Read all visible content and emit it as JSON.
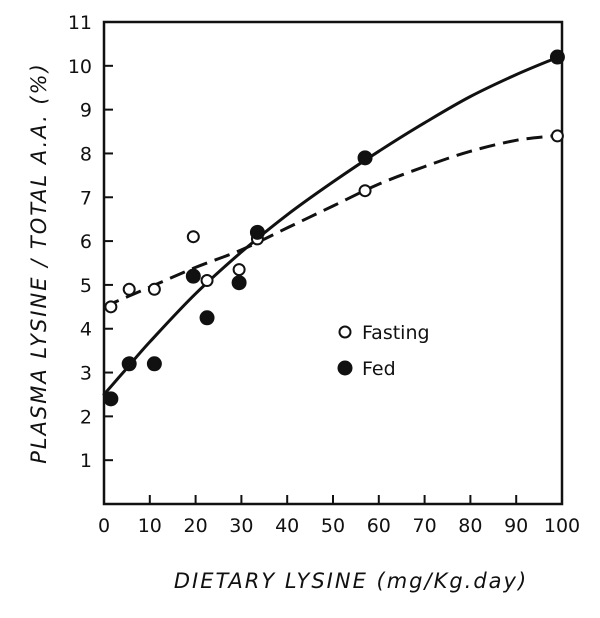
{
  "chart_data": {
    "type": "scatter",
    "title": "",
    "xlabel": "DIETARY LYSINE (mg/Kg.day)",
    "ylabel": "PLASMA LYSINE / TOTAL A.A. (%)",
    "xlim": [
      0,
      100
    ],
    "ylim": [
      0,
      11
    ],
    "xticks": [
      "0",
      "10",
      "20",
      "30",
      "40",
      "50",
      "60",
      "70",
      "80",
      "90",
      "100"
    ],
    "yticks": [
      "1",
      "2",
      "3",
      "4",
      "5",
      "6",
      "7",
      "8",
      "9",
      "10",
      "11"
    ],
    "grid": false,
    "legend_position": "center-right",
    "series": [
      {
        "name": "Fasting",
        "marker": "open-circle",
        "line_style": "dashed",
        "points": [
          [
            1.5,
            4.5
          ],
          [
            5.5,
            4.9
          ],
          [
            11,
            4.9
          ],
          [
            19.5,
            6.1
          ],
          [
            22.5,
            5.1
          ],
          [
            29.5,
            5.35
          ],
          [
            33.5,
            6.05
          ],
          [
            57,
            7.15
          ],
          [
            99,
            8.4
          ]
        ],
        "fit_curve": [
          [
            0,
            4.5
          ],
          [
            10,
            4.95
          ],
          [
            20,
            5.4
          ],
          [
            30,
            5.8
          ],
          [
            40,
            6.3
          ],
          [
            50,
            6.8
          ],
          [
            60,
            7.3
          ],
          [
            70,
            7.7
          ],
          [
            80,
            8.05
          ],
          [
            90,
            8.3
          ],
          [
            98,
            8.4
          ]
        ]
      },
      {
        "name": "Fed",
        "marker": "filled-circle",
        "line_style": "solid",
        "points": [
          [
            1.5,
            2.4
          ],
          [
            5.5,
            3.2
          ],
          [
            11,
            3.2
          ],
          [
            19.5,
            5.2
          ],
          [
            22.5,
            4.25
          ],
          [
            29.5,
            5.05
          ],
          [
            33.5,
            6.2
          ],
          [
            57,
            7.9
          ],
          [
            99,
            10.2
          ]
        ],
        "fit_curve": [
          [
            0,
            2.5
          ],
          [
            5,
            3.1
          ],
          [
            10,
            3.7
          ],
          [
            20,
            4.8
          ],
          [
            30,
            5.75
          ],
          [
            40,
            6.6
          ],
          [
            50,
            7.35
          ],
          [
            60,
            8.05
          ],
          [
            70,
            8.7
          ],
          [
            80,
            9.3
          ],
          [
            90,
            9.8
          ],
          [
            98,
            10.15
          ]
        ]
      }
    ],
    "legend": [
      {
        "label": "Fasting",
        "marker": "open-circle"
      },
      {
        "label": "Fed",
        "marker": "filled-circle"
      }
    ]
  }
}
